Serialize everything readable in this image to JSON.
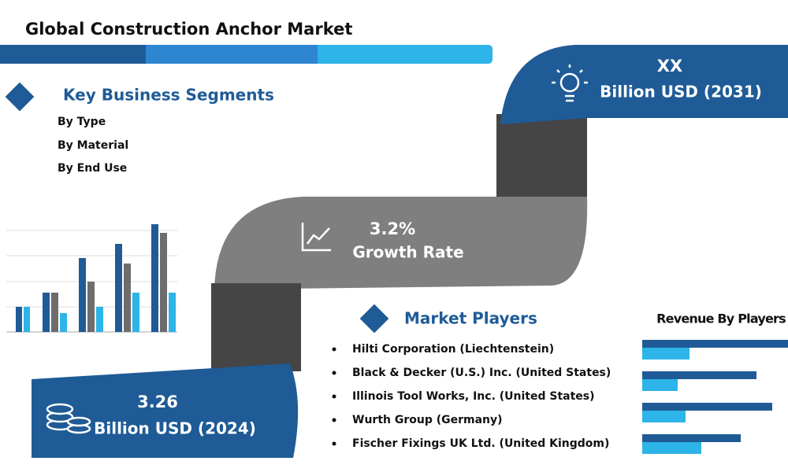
{
  "header": {
    "title": "Global Construction Anchor Market"
  },
  "segments": {
    "heading": "Key Business Segments",
    "items": [
      "By Type",
      "By Material",
      "By End Use"
    ]
  },
  "forecast": {
    "value": "XX",
    "label": "Billion USD (2031)"
  },
  "growth": {
    "value": "3.2%",
    "label": "Growth Rate"
  },
  "base": {
    "value": "3.26",
    "label": "Billion USD (2024)"
  },
  "players": {
    "heading": "Market Players",
    "items": [
      "Hilti Corporation (Liechtenstein)",
      "Black & Decker (U.S.) Inc. (United States)",
      "Illinois Tool Works, Inc. (United States)",
      "Wurth Group (Germany)",
      "Fischer Fixings UK Ltd. (United Kingdom)"
    ]
  },
  "revenue": {
    "heading": "Revenue By Players"
  }
}
